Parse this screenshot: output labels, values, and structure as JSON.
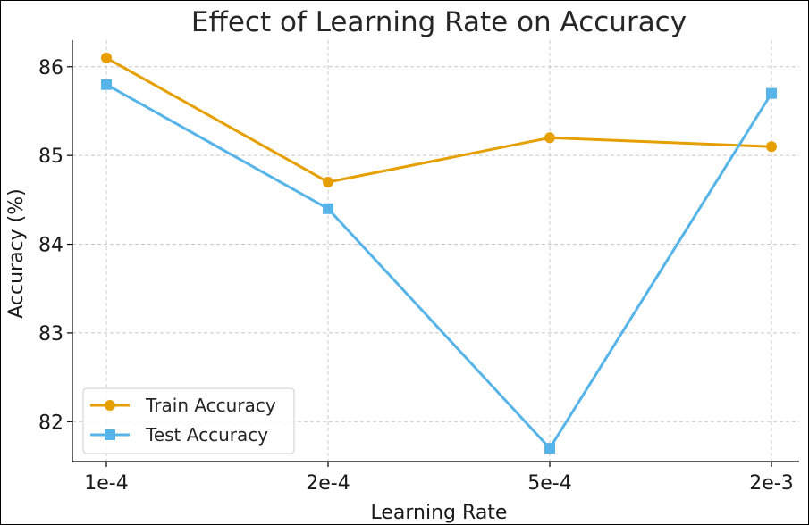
{
  "chart_data": {
    "type": "line",
    "title": "Effect of Learning Rate on Accuracy",
    "xlabel": "Learning Rate",
    "ylabel": "Accuracy (%)",
    "categories": [
      "1e-4",
      "2e-4",
      "5e-4",
      "2e-3"
    ],
    "ylim": [
      81.55,
      86.3
    ],
    "yticks": [
      82,
      83,
      84,
      85,
      86
    ],
    "grid": true,
    "legend_position": "lower-left",
    "series": [
      {
        "name": "Train Accuracy",
        "color": "#E69F00",
        "marker": "circle",
        "values": [
          86.1,
          84.7,
          85.2,
          85.1
        ]
      },
      {
        "name": "Test Accuracy",
        "color": "#56B4E9",
        "marker": "square",
        "values": [
          85.8,
          84.4,
          81.7,
          85.7
        ]
      }
    ]
  }
}
